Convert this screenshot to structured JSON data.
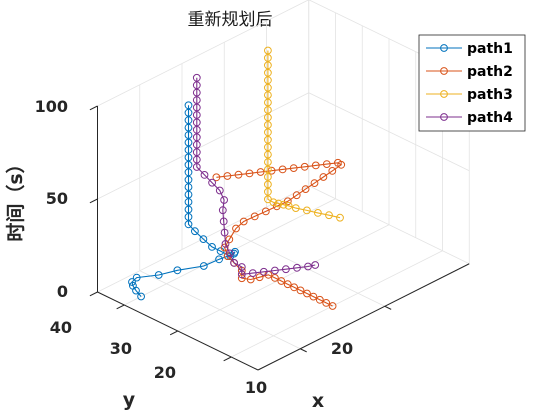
{
  "chart_data": {
    "type": "scatter",
    "title": "重新规划后",
    "xlabel": "x",
    "ylabel": "y",
    "zlabel": "时间（s）",
    "x_ticks": [
      "10",
      "20"
    ],
    "y_ticks": [
      "20",
      "30",
      "40"
    ],
    "z_ticks": [
      "0",
      "50",
      "100"
    ],
    "xlim": [
      5,
      30
    ],
    "ylim": [
      15,
      45
    ],
    "zlim": [
      0,
      100
    ],
    "grid": true,
    "legend_position": "top-right",
    "series": [
      {
        "name": "path1",
        "color": "#0072BD",
        "points": [
          [
            7.0,
            40.0,
            0
          ],
          [
            7.4,
            41.6,
            0
          ],
          [
            7.8,
            42.8,
            0
          ],
          [
            8.2,
            43.6,
            0
          ],
          [
            9.0,
            44.0,
            0
          ],
          [
            10.6,
            42.4,
            0
          ],
          [
            11.8,
            40.8,
            2
          ],
          [
            13.4,
            38.4,
            4
          ],
          [
            14.2,
            36.8,
            8
          ],
          [
            14.2,
            35.2,
            12
          ],
          [
            14.2,
            34.0,
            15
          ],
          [
            13.8,
            33.2,
            18
          ],
          [
            13.0,
            32.8,
            18
          ],
          [
            12.6,
            34.0,
            20
          ],
          [
            12.6,
            35.6,
            20
          ],
          [
            12.6,
            37.2,
            22
          ],
          [
            12.6,
            38.8,
            24
          ],
          [
            12.6,
            40.0,
            26
          ],
          [
            12.6,
            40.0,
            30
          ],
          [
            12.6,
            40.0,
            34
          ],
          [
            12.6,
            40.0,
            38
          ],
          [
            12.6,
            40.0,
            42
          ],
          [
            12.6,
            40.0,
            46
          ],
          [
            12.6,
            40.0,
            50
          ],
          [
            12.6,
            40.0,
            54
          ],
          [
            12.6,
            40.0,
            58
          ],
          [
            12.6,
            40.0,
            62
          ],
          [
            12.6,
            40.0,
            66
          ],
          [
            12.6,
            40.0,
            70
          ],
          [
            12.6,
            40.0,
            74
          ],
          [
            12.6,
            40.0,
            78
          ],
          [
            12.6,
            40.0,
            82
          ],
          [
            12.6,
            40.0,
            86
          ],
          [
            12.6,
            40.0,
            90
          ]
        ]
      },
      {
        "name": "path2",
        "color": "#D95319",
        "points": [
          [
            17.0,
            20.0,
            0
          ],
          [
            17.0,
            21.2,
            0
          ],
          [
            17.0,
            22.4,
            0
          ],
          [
            17.0,
            23.6,
            0
          ],
          [
            17.0,
            24.8,
            0
          ],
          [
            17.0,
            26.0,
            0
          ],
          [
            17.0,
            27.2,
            0
          ],
          [
            17.0,
            28.4,
            0
          ],
          [
            17.0,
            29.6,
            0
          ],
          [
            17.0,
            30.8,
            0
          ],
          [
            17.0,
            32.0,
            0
          ],
          [
            16.2,
            32.4,
            0
          ],
          [
            15.4,
            32.8,
            0
          ],
          [
            14.6,
            33.2,
            2
          ],
          [
            14.6,
            33.2,
            6
          ],
          [
            14.2,
            34.0,
            10
          ],
          [
            14.2,
            35.2,
            12
          ],
          [
            14.6,
            36.4,
            14
          ],
          [
            15.4,
            36.8,
            16
          ],
          [
            16.2,
            36.8,
            20
          ],
          [
            16.6,
            36.0,
            24
          ],
          [
            17.4,
            35.2,
            26
          ],
          [
            18.2,
            34.4,
            28
          ],
          [
            19.0,
            33.6,
            30
          ],
          [
            19.8,
            32.8,
            32
          ],
          [
            20.6,
            32.4,
            34
          ],
          [
            21.4,
            32.0,
            36
          ],
          [
            22.2,
            31.6,
            38
          ],
          [
            23.0,
            31.2,
            40
          ],
          [
            23.8,
            30.8,
            42
          ],
          [
            24.6,
            30.4,
            44
          ],
          [
            24.2,
            30.4,
            46
          ],
          [
            23.4,
            31.2,
            46
          ],
          [
            22.6,
            32.0,
            46
          ],
          [
            21.8,
            32.8,
            46
          ],
          [
            21.0,
            33.6,
            46
          ],
          [
            20.2,
            34.4,
            46
          ],
          [
            19.4,
            35.2,
            46
          ],
          [
            18.6,
            36.0,
            46
          ],
          [
            17.8,
            36.8,
            46
          ],
          [
            17.0,
            37.6,
            46
          ],
          [
            16.2,
            38.4,
            46
          ],
          [
            15.4,
            39.2,
            46
          ]
        ]
      },
      {
        "name": "path3",
        "color": "#EDB120",
        "points": [
          [
            28.0,
            36.0,
            0
          ],
          [
            27.2,
            36.8,
            2
          ],
          [
            26.4,
            37.6,
            4
          ],
          [
            25.6,
            38.4,
            6
          ],
          [
            24.8,
            39.2,
            8
          ],
          [
            24.2,
            39.6,
            10
          ],
          [
            23.6,
            39.6,
            12
          ],
          [
            23.0,
            39.6,
            14
          ],
          [
            22.4,
            39.6,
            16
          ],
          [
            22.0,
            40.0,
            18
          ],
          [
            22.0,
            40.0,
            22
          ],
          [
            22.0,
            40.0,
            26
          ],
          [
            22.0,
            40.0,
            30
          ],
          [
            22.0,
            40.0,
            34
          ],
          [
            22.0,
            40.0,
            38
          ],
          [
            22.0,
            40.0,
            42
          ],
          [
            22.0,
            40.0,
            46
          ],
          [
            22.0,
            40.0,
            50
          ],
          [
            22.0,
            40.0,
            54
          ],
          [
            22.0,
            40.0,
            58
          ],
          [
            22.0,
            40.0,
            62
          ],
          [
            22.0,
            40.0,
            66
          ],
          [
            22.0,
            40.0,
            70
          ],
          [
            22.0,
            40.0,
            74
          ],
          [
            22.0,
            40.0,
            78
          ],
          [
            22.0,
            40.0,
            82
          ],
          [
            22.0,
            40.0,
            86
          ],
          [
            22.0,
            40.0,
            90
          ],
          [
            22.0,
            40.0,
            94
          ],
          [
            22.0,
            40.0,
            98
          ]
        ]
      },
      {
        "name": "path4",
        "color": "#7E2F8E",
        "points": [
          [
            20.0,
            28.0,
            4
          ],
          [
            19.4,
            28.4,
            4
          ],
          [
            18.6,
            29.2,
            4
          ],
          [
            17.8,
            30.0,
            4
          ],
          [
            17.0,
            30.8,
            4
          ],
          [
            16.2,
            31.6,
            4
          ],
          [
            15.4,
            32.4,
            4
          ],
          [
            14.6,
            33.2,
            4
          ],
          [
            14.6,
            33.2,
            8
          ],
          [
            14.2,
            34.0,
            10
          ],
          [
            14.2,
            34.8,
            14
          ],
          [
            14.2,
            35.6,
            18
          ],
          [
            14.6,
            36.4,
            22
          ],
          [
            15.0,
            37.2,
            26
          ],
          [
            15.4,
            38.0,
            30
          ],
          [
            15.8,
            38.4,
            34
          ],
          [
            15.8,
            39.2,
            38
          ],
          [
            15.4,
            40.0,
            42
          ],
          [
            15.0,
            40.8,
            46
          ],
          [
            14.6,
            41.6,
            50
          ],
          [
            14.6,
            41.6,
            54
          ],
          [
            14.6,
            41.6,
            58
          ],
          [
            14.6,
            41.6,
            62
          ],
          [
            14.6,
            41.6,
            66
          ],
          [
            14.6,
            41.6,
            70
          ],
          [
            14.6,
            41.6,
            74
          ],
          [
            14.6,
            41.6,
            78
          ],
          [
            14.6,
            41.6,
            82
          ],
          [
            14.6,
            41.6,
            86
          ],
          [
            14.6,
            41.6,
            90
          ],
          [
            14.6,
            41.6,
            94
          ],
          [
            14.6,
            41.6,
            98
          ]
        ]
      }
    ]
  }
}
